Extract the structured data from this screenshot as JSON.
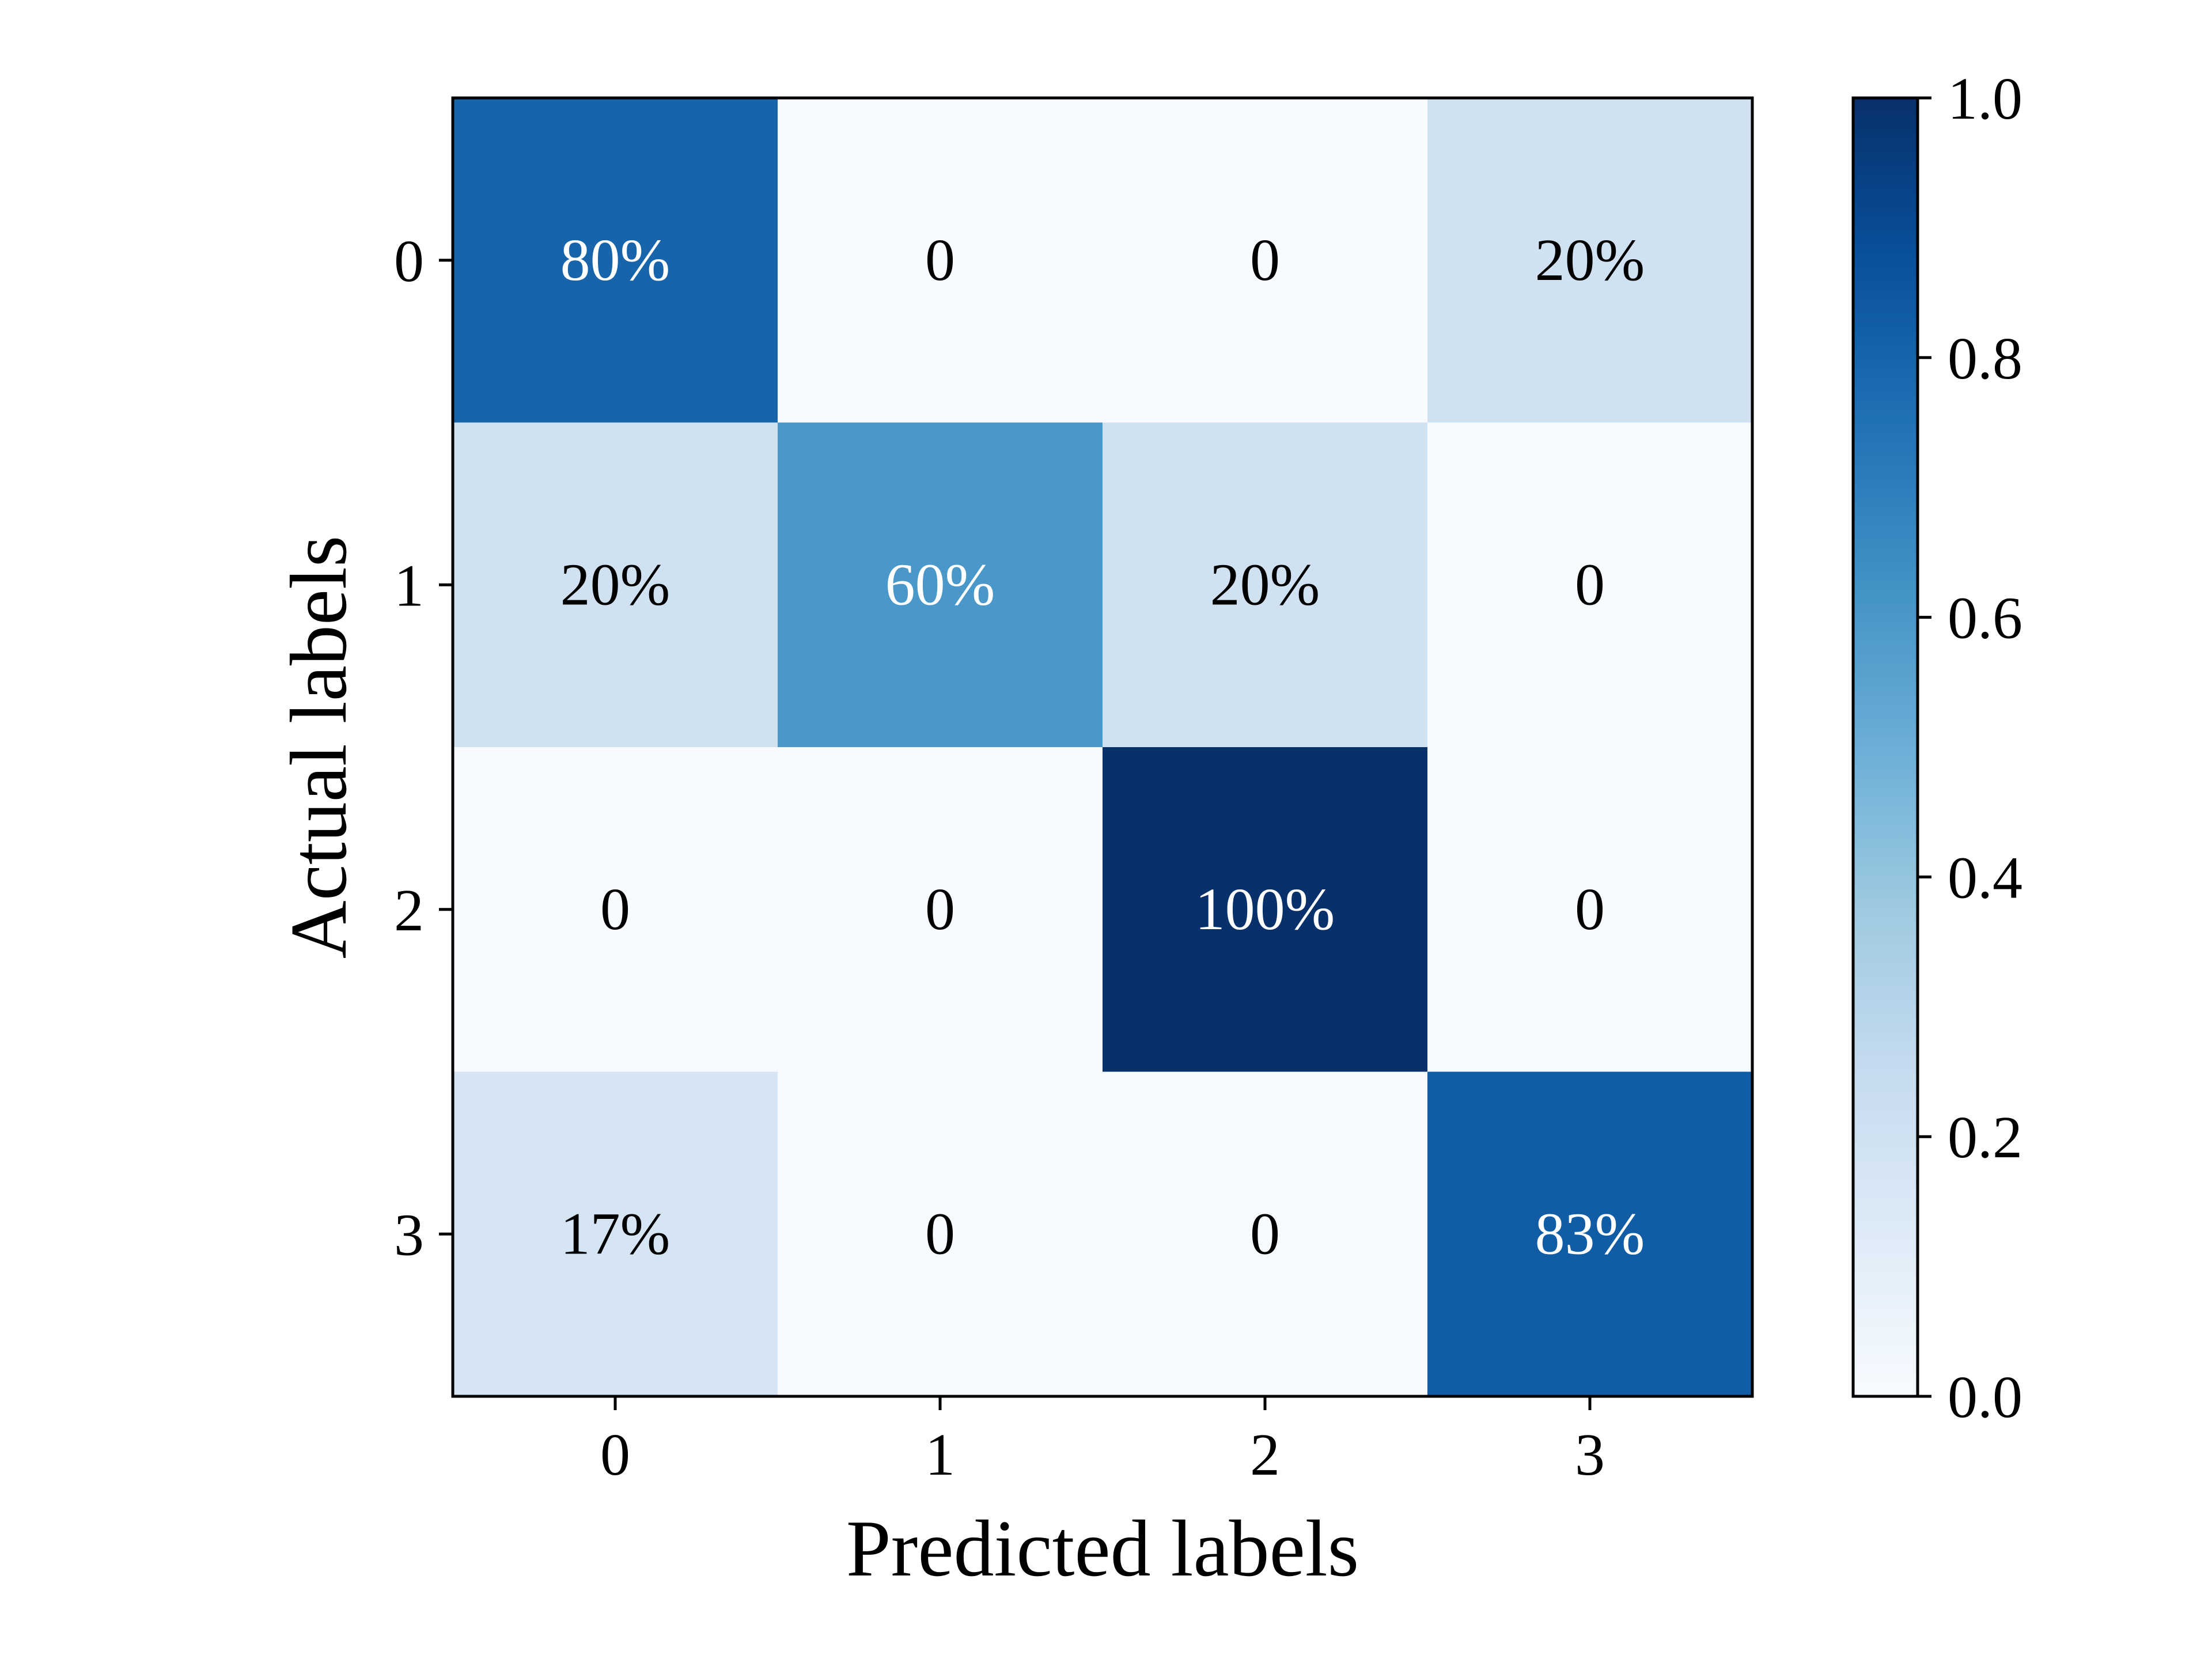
{
  "chart_data": {
    "type": "heatmap",
    "title": "",
    "xlabel": "Predicted labels",
    "ylabel": "Actual labels",
    "x_categories": [
      "0",
      "1",
      "2",
      "3"
    ],
    "y_categories": [
      "0",
      "1",
      "2",
      "3"
    ],
    "values": [
      [
        0.8,
        0.0,
        0.0,
        0.2
      ],
      [
        0.2,
        0.6,
        0.2,
        0.0
      ],
      [
        0.0,
        0.0,
        1.0,
        0.0
      ],
      [
        0.17,
        0.0,
        0.0,
        0.83
      ]
    ],
    "cell_labels": [
      [
        "80%",
        "0",
        "0",
        "20%"
      ],
      [
        "20%",
        "60%",
        "20%",
        "0"
      ],
      [
        "0",
        "0",
        "100%",
        "0"
      ],
      [
        "17%",
        "0",
        "0",
        "83%"
      ]
    ],
    "colormap": "Blues",
    "colorbar": {
      "range": [
        0.0,
        1.0
      ],
      "ticks": [
        0.0,
        0.2,
        0.4,
        0.6,
        0.8,
        1.0
      ],
      "tick_labels": [
        "0.0",
        "0.2",
        "0.4",
        "0.6",
        "0.8",
        "1.0"
      ]
    },
    "grid": false
  }
}
